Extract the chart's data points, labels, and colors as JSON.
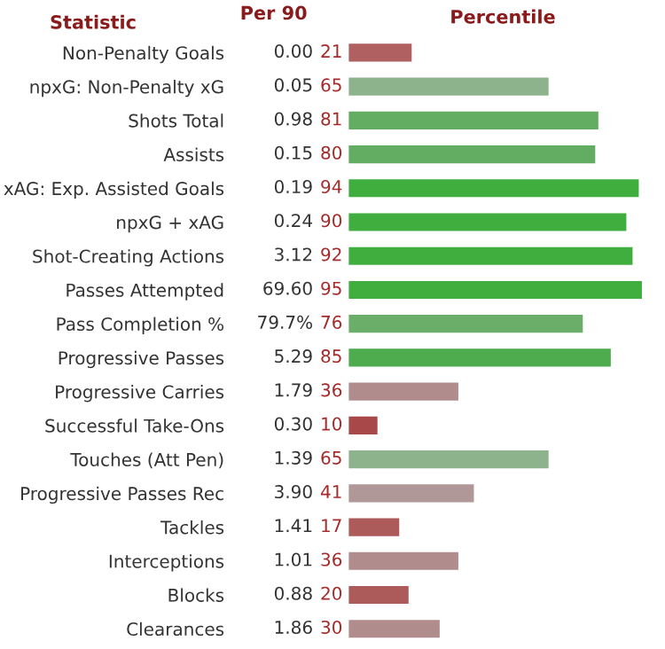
{
  "chart_data": {
    "type": "bar",
    "orientation": "horizontal",
    "ylabel": "Statistic",
    "xlabel": "Percentile",
    "categories": [
      "Non-Penalty Goals",
      "npxG: Non-Penalty xG",
      "Shots Total",
      "Assists",
      "xAG: Exp. Assisted Goals",
      "npxG + xAG",
      "Shot-Creating Actions",
      "Passes Attempted",
      "Pass Completion %",
      "Progressive Passes",
      "Progressive Carries",
      "Successful Take-Ons",
      "Touches (Att Pen)",
      "Progressive Passes Rec",
      "Tackles",
      "Interceptions",
      "Blocks",
      "Clearances"
    ],
    "values": [
      21,
      65,
      81,
      80,
      94,
      90,
      92,
      95,
      76,
      85,
      36,
      10,
      65,
      41,
      17,
      36,
      20,
      30
    ],
    "colors": [
      "#b06060",
      "#8db38d",
      "#62ad62",
      "#62ad62",
      "#3fae3f",
      "#3fae3f",
      "#3fae3f",
      "#3fae3f",
      "#6aae6a",
      "#4eab4e",
      "#b08c8c",
      "#a84848",
      "#8db38d",
      "#b09898",
      "#ad5a5a",
      "#b08c8c",
      "#ad5a5a",
      "#b08c8c"
    ],
    "data_labels": true,
    "annotations": [
      "Per 90",
      "0.00",
      "0.05",
      "0.98",
      "0.15",
      "0.19",
      "0.24",
      "3.12",
      "69.60",
      "79.7%",
      "5.29",
      "1.79",
      "0.30",
      "1.39",
      "3.90",
      "1.41",
      "1.01",
      "0.88",
      "1.86"
    ],
    "grid": false,
    "legend": false
  }
}
